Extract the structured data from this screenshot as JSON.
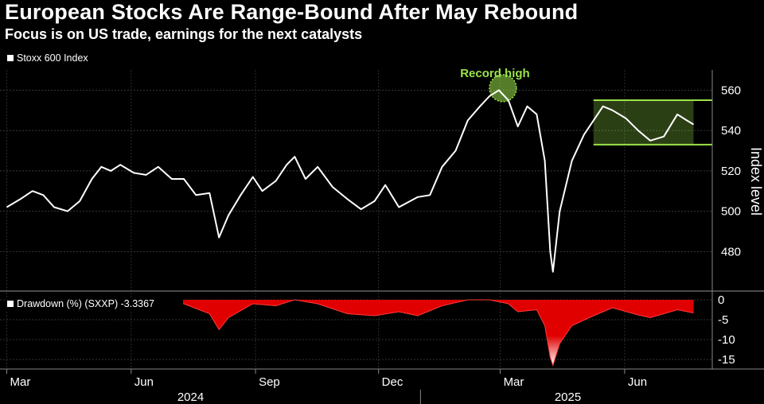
{
  "title": "European Stocks Are Range-Bound After May Rebound",
  "subtitle": "Focus is on US trade, earnings for the next catalysts",
  "colors": {
    "price_line": "#ffffff",
    "drawdown_fill": "#e00000",
    "range_box": "#9be34a",
    "annotation": "#9be34a"
  },
  "chart_data": [
    {
      "type": "line",
      "legend": "Stoxx 600 Index",
      "ylabel": "Index level",
      "ylim": [
        462,
        570
      ],
      "yticks": [
        480,
        500,
        520,
        540,
        560
      ],
      "x": [
        "2024-03-01",
        "2024-03-11",
        "2024-03-20",
        "2024-03-28",
        "2024-04-05",
        "2024-04-15",
        "2024-04-24",
        "2024-05-03",
        "2024-05-10",
        "2024-05-17",
        "2024-05-24",
        "2024-06-03",
        "2024-06-12",
        "2024-06-21",
        "2024-07-01",
        "2024-07-10",
        "2024-07-19",
        "2024-07-29",
        "2024-08-05",
        "2024-08-12",
        "2024-08-21",
        "2024-08-30",
        "2024-09-06",
        "2024-09-16",
        "2024-09-24",
        "2024-09-30",
        "2024-10-08",
        "2024-10-17",
        "2024-10-28",
        "2024-11-08",
        "2024-11-18",
        "2024-11-28",
        "2024-12-06",
        "2024-12-16",
        "2024-12-30",
        "2025-01-08",
        "2025-01-17",
        "2025-01-27",
        "2025-02-05",
        "2025-02-14",
        "2025-02-21",
        "2025-02-28",
        "2025-03-07",
        "2025-03-14",
        "2025-03-21",
        "2025-03-28",
        "2025-04-03",
        "2025-04-07",
        "2025-04-09",
        "2025-04-14",
        "2025-04-23",
        "2025-05-02",
        "2025-05-09",
        "2025-05-16",
        "2025-05-23",
        "2025-06-02",
        "2025-06-11",
        "2025-06-20",
        "2025-06-30",
        "2025-07-10",
        "2025-07-17",
        "2025-07-22"
      ],
      "y": [
        502,
        506,
        510,
        508,
        502,
        500,
        505,
        516,
        522,
        520,
        523,
        519,
        518,
        522,
        516,
        516,
        508,
        509,
        487,
        498,
        508,
        517,
        510,
        515,
        523,
        527,
        516,
        522,
        512,
        506,
        501,
        505,
        513,
        502,
        507,
        508,
        522,
        530,
        545,
        552,
        557,
        560,
        555,
        542,
        552,
        548,
        525,
        480,
        470,
        500,
        525,
        538,
        545,
        552,
        550,
        546,
        540,
        535,
        537,
        548,
        545,
        543
      ],
      "annotations": [
        {
          "label": "Record high",
          "x": "2025-03-03",
          "y": 561
        },
        {
          "label": "",
          "type": "range-box",
          "x_start": "2025-05-09",
          "x_end": "2025-07-22",
          "y_low": 533,
          "y_high": 555
        }
      ]
    },
    {
      "type": "area",
      "legend": "Drawdown (%) (SXXP)",
      "last_value": "-3.3367",
      "ylim": [
        -17,
        1
      ],
      "yticks": [
        0,
        -5,
        -10,
        -15
      ],
      "x": [
        "2024-03-01",
        "2024-03-20",
        "2024-04-15",
        "2024-05-03",
        "2024-05-17",
        "2024-06-03",
        "2024-06-21",
        "2024-07-10",
        "2024-07-29",
        "2024-08-05",
        "2024-08-12",
        "2024-08-30",
        "2024-09-16",
        "2024-09-30",
        "2024-10-17",
        "2024-11-08",
        "2024-11-28",
        "2024-12-16",
        "2024-12-30",
        "2025-01-17",
        "2025-02-05",
        "2025-02-21",
        "2025-03-07",
        "2025-03-14",
        "2025-03-28",
        "2025-04-03",
        "2025-04-07",
        "2025-04-09",
        "2025-04-14",
        "2025-04-23",
        "2025-05-09",
        "2025-05-23",
        "2025-06-11",
        "2025-06-20",
        "2025-07-10",
        "2025-07-22"
      ],
      "y": [
        -0.5,
        -1.0,
        -2.5,
        0,
        -0.5,
        -1.2,
        0,
        -1.0,
        -3.5,
        -7.5,
        -4.5,
        -1.0,
        -1.5,
        0,
        -1.0,
        -3.5,
        -4.0,
        -3.0,
        -4.0,
        -1.5,
        0,
        0,
        -1.0,
        -3.0,
        -2.5,
        -6.5,
        -14.5,
        -16.5,
        -11,
        -6.5,
        -4.0,
        -2.0,
        -3.8,
        -4.5,
        -2.5,
        -3.3
      ]
    }
  ],
  "x_axis": {
    "months": [
      {
        "label": "Mar",
        "date": "2024-03-01"
      },
      {
        "label": "Jun",
        "date": "2024-06-01"
      },
      {
        "label": "Sep",
        "date": "2024-09-01"
      },
      {
        "label": "Dec",
        "date": "2024-12-01"
      },
      {
        "label": "Mar",
        "date": "2025-03-01"
      },
      {
        "label": "Jun",
        "date": "2025-06-01"
      }
    ],
    "years": [
      {
        "label": "2024",
        "center_date": "2024-07-15"
      },
      {
        "label": "2025",
        "center_date": "2025-04-20"
      }
    ],
    "year_divider": "2025-01-01"
  }
}
